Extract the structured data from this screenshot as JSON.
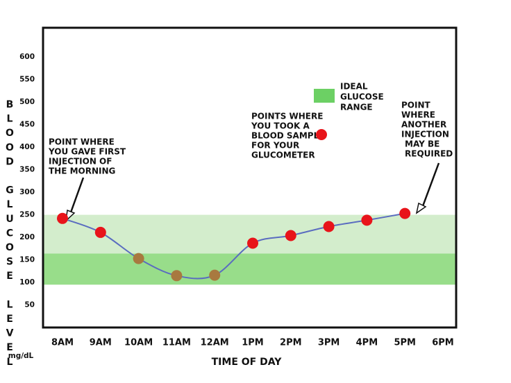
{
  "chart_data": {
    "type": "line",
    "y_label": "BLOOD GLUCOSE LEVEL",
    "y_unit": "mg/dL",
    "x_label": "TIME OF DAY",
    "categories": [
      "8AM",
      "9AM",
      "10AM",
      "11AM",
      "12AM",
      "1PM",
      "2PM",
      "3PM",
      "4PM",
      "5PM",
      "6PM"
    ],
    "values": [
      242,
      211,
      153,
      115,
      116,
      187,
      204,
      224,
      238,
      253,
      null
    ],
    "line_color": "#5a6cc0",
    "point_colors": [
      "#e8141a",
      "#e8141a",
      "#a8793f",
      "#a8793f",
      "#a8793f",
      "#e8141a",
      "#e8141a",
      "#e8141a",
      "#e8141a",
      "#e8141a",
      null
    ],
    "bands": [
      {
        "from": 164,
        "to": 250,
        "color": "#d3edcc"
      },
      {
        "from": 95,
        "to": 164,
        "color": "#98dd8a"
      }
    ],
    "ylim": [
      0,
      665
    ],
    "yticks": [
      50,
      100,
      150,
      200,
      250,
      300,
      350,
      400,
      450,
      500,
      550,
      600
    ],
    "legend": {
      "lines": [
        "IDEAL",
        "GLUCOSE",
        "RANGE"
      ],
      "color": "#6cd064"
    },
    "annotations": [
      {
        "lines": [
          "POINT WHERE",
          "YOU GAVE FIRST",
          "INJECTION OF",
          "THE MORNING"
        ]
      },
      {
        "lines": [
          "POINTS WHERE",
          "YOU TOOK A",
          "BLOOD SAMPLE",
          "FOR YOUR",
          "GLUCOMETER"
        ]
      },
      {
        "lines": [
          "POINT",
          "WHERE",
          "ANOTHER",
          "INJECTION",
          "MAY BE",
          "REQUIRED"
        ]
      }
    ]
  }
}
